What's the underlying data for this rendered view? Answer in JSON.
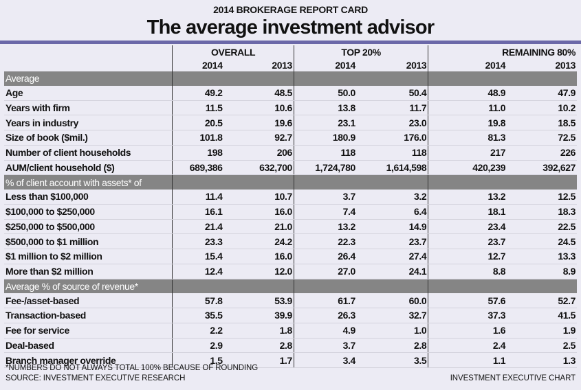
{
  "kicker": "2014 BROKERAGE REPORT CARD",
  "title": "The average investment advisor",
  "groups": [
    "OVERALL",
    "TOP 20%",
    "REMAINING 80%"
  ],
  "years": [
    "2014",
    "2013"
  ],
  "sections": [
    {
      "label": "Average",
      "rows": [
        [
          "Age",
          "49.2",
          "48.5",
          "50.0",
          "50.4",
          "48.9",
          "47.9"
        ],
        [
          "Years with firm",
          "11.5",
          "10.6",
          "13.8",
          "11.7",
          "11.0",
          "10.2"
        ],
        [
          "Years in industry",
          "20.5",
          "19.6",
          "23.1",
          "23.0",
          "19.8",
          "18.5"
        ],
        [
          "Size of book ($mil.)",
          "101.8",
          "92.7",
          "180.9",
          "176.0",
          "81.3",
          "72.5"
        ],
        [
          "Number of client households",
          "198",
          "206",
          "118",
          "118",
          "217",
          "226"
        ],
        [
          "AUM/client household ($)",
          "689,386",
          "632,700",
          "1,724,780",
          "1,614,598",
          "420,239",
          "392,627"
        ]
      ]
    },
    {
      "label": "% of client account with assets* of",
      "rows": [
        [
          "Less than $100,000",
          "11.4",
          "10.7",
          "3.7",
          "3.2",
          "13.2",
          "12.5"
        ],
        [
          "$100,000 to $250,000",
          "16.1",
          "16.0",
          "7.4",
          "6.4",
          "18.1",
          "18.3"
        ],
        [
          "$250,000 to $500,000",
          "21.4",
          "21.0",
          "13.2",
          "14.9",
          "23.4",
          "22.5"
        ],
        [
          "$500,000 to $1 million",
          "23.3",
          "24.2",
          "22.3",
          "23.7",
          "23.7",
          "24.5"
        ],
        [
          "$1 million to $2 million",
          "15.4",
          "16.0",
          "26.4",
          "27.4",
          "12.7",
          "13.3"
        ],
        [
          "More than $2 million",
          "12.4",
          "12.0",
          "27.0",
          "24.1",
          "8.8",
          "8.9"
        ]
      ]
    },
    {
      "label": "Average % of source of revenue*",
      "rows": [
        [
          "Fee-/asset-based",
          "57.8",
          "53.9",
          "61.7",
          "60.0",
          "57.6",
          "52.7"
        ],
        [
          "Transaction-based",
          "35.5",
          "39.9",
          "26.3",
          "32.7",
          "37.3",
          "41.5"
        ],
        [
          "Fee for service",
          "2.2",
          "1.8",
          "4.9",
          "1.0",
          "1.6",
          "1.9"
        ],
        [
          "Deal-based",
          "2.9",
          "2.8",
          "3.7",
          "2.8",
          "2.4",
          "2.5"
        ],
        [
          "Branch manager override",
          "1.5",
          "1.7",
          "3.4",
          "3.5",
          "1.1",
          "1.3"
        ]
      ]
    }
  ],
  "footnote": "*NUMBERS DO NOT ALWAYS TOTAL 100% BECAUSE OF ROUNDING",
  "source": "SOURCE: INVESTMENT EXECUTIVE RESEARCH",
  "credit": "INVESTMENT EXECUTIVE CHART",
  "colors": {
    "background": "#ecebf4",
    "accent_bar": "#6b68a8",
    "section_row": "#858585"
  }
}
